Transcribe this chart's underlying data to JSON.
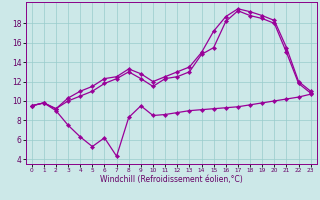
{
  "bg_color": "#cce8e8",
  "line_color": "#990099",
  "grid_color": "#99cccc",
  "xlabel": "Windchill (Refroidissement éolien,°C)",
  "xlim": [
    -0.5,
    23.5
  ],
  "ylim": [
    3.5,
    20.2
  ],
  "xticks": [
    0,
    1,
    2,
    3,
    4,
    5,
    6,
    7,
    8,
    9,
    10,
    11,
    12,
    13,
    14,
    15,
    16,
    17,
    18,
    19,
    20,
    21,
    22,
    23
  ],
  "yticks": [
    4,
    6,
    8,
    10,
    12,
    14,
    16,
    18
  ],
  "series": [
    {
      "x": [
        0,
        1,
        2,
        3,
        4,
        5,
        6,
        7,
        8,
        9,
        10,
        11,
        12,
        13,
        14,
        15,
        16,
        17,
        18,
        19,
        20,
        21,
        22,
        23
      ],
      "y": [
        9.5,
        9.8,
        9.0,
        7.5,
        6.3,
        5.3,
        6.2,
        4.3,
        8.3,
        9.5,
        8.5,
        8.6,
        8.8,
        9.0,
        9.1,
        9.2,
        9.3,
        9.4,
        9.6,
        9.8,
        10.0,
        10.2,
        10.4,
        10.7
      ]
    },
    {
      "x": [
        0,
        1,
        2,
        3,
        4,
        5,
        6,
        7,
        8,
        9,
        10,
        11,
        12,
        13,
        14,
        15,
        16,
        17,
        18,
        19,
        20,
        21,
        22,
        23
      ],
      "y": [
        9.5,
        9.8,
        9.2,
        10.0,
        10.5,
        11.0,
        11.8,
        12.3,
        13.0,
        12.3,
        11.5,
        12.3,
        12.5,
        13.0,
        14.8,
        15.5,
        18.2,
        19.3,
        18.8,
        18.5,
        18.0,
        15.0,
        11.8,
        10.8
      ]
    },
    {
      "x": [
        0,
        1,
        2,
        3,
        4,
        5,
        6,
        7,
        8,
        9,
        10,
        11,
        12,
        13,
        14,
        15,
        16,
        17,
        18,
        19,
        20,
        21,
        22,
        23
      ],
      "y": [
        9.5,
        9.8,
        9.2,
        10.3,
        11.0,
        11.5,
        12.3,
        12.5,
        13.3,
        12.8,
        12.0,
        12.5,
        13.0,
        13.5,
        15.0,
        17.2,
        18.7,
        19.5,
        19.2,
        18.8,
        18.3,
        15.5,
        12.0,
        11.0
      ]
    }
  ]
}
